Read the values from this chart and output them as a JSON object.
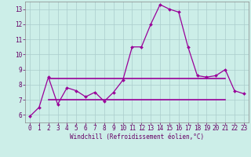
{
  "xlabel": "Windchill (Refroidissement éolien,°C)",
  "background_color": "#cceee8",
  "grid_color": "#aacccc",
  "line_color": "#990099",
  "x_values": [
    0,
    1,
    2,
    3,
    4,
    5,
    6,
    7,
    8,
    9,
    10,
    11,
    12,
    13,
    14,
    15,
    16,
    17,
    18,
    19,
    20,
    21,
    22,
    23
  ],
  "line1_y": [
    5.9,
    6.5,
    8.5,
    6.7,
    7.8,
    7.6,
    7.2,
    7.5,
    6.9,
    7.5,
    8.3,
    10.5,
    10.5,
    12.0,
    13.3,
    13.0,
    12.8,
    10.5,
    8.6,
    8.5,
    8.6,
    9.0,
    7.6,
    7.4
  ],
  "line2_y": [
    null,
    null,
    8.4,
    8.4,
    8.4,
    8.4,
    8.4,
    8.4,
    8.4,
    8.4,
    8.4,
    8.4,
    8.4,
    8.4,
    8.4,
    8.4,
    8.4,
    8.4,
    8.4,
    8.4,
    8.4,
    8.4,
    null,
    null
  ],
  "line3_y": [
    null,
    null,
    7.0,
    7.0,
    7.0,
    7.0,
    7.0,
    7.0,
    7.0,
    7.0,
    7.0,
    7.0,
    7.0,
    7.0,
    7.0,
    7.0,
    7.0,
    7.0,
    7.0,
    7.0,
    7.0,
    7.0,
    null,
    null
  ],
  "ylim": [
    5.5,
    13.5
  ],
  "xlim": [
    -0.5,
    23.5
  ],
  "yticks": [
    6,
    7,
    8,
    9,
    10,
    11,
    12,
    13
  ],
  "xticks": [
    0,
    1,
    2,
    3,
    4,
    5,
    6,
    7,
    8,
    9,
    10,
    11,
    12,
    13,
    14,
    15,
    16,
    17,
    18,
    19,
    20,
    21,
    22,
    23
  ],
  "tick_fontsize": 5.5,
  "xlabel_fontsize": 5.5,
  "text_color": "#660066"
}
